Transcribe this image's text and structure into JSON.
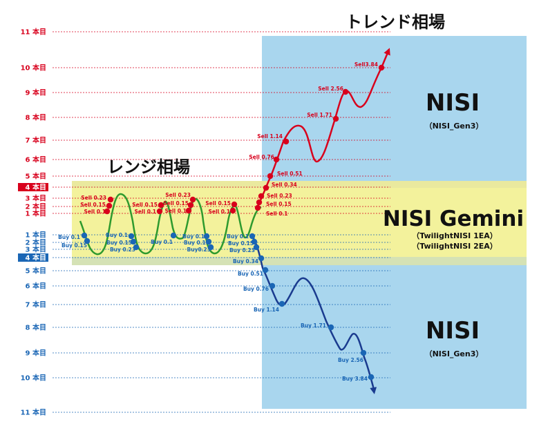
{
  "titles": {
    "trend": "トレンド相場",
    "range": "レンジ相場"
  },
  "panels": {
    "nisi_top": {
      "name": "NISI",
      "sub": "（NISI_Gen3）"
    },
    "gemini": {
      "name": "NISI Gemini",
      "sub1": "（TwilightNISI 1EA）",
      "sub2": "（TwilightNISI 2EA）"
    },
    "nisi_bottom": {
      "name": "NISI",
      "sub": "（NISI_Gen3）"
    }
  },
  "colors": {
    "sell": "#d8001c",
    "buy": "#1a66b5",
    "range_line": "#2e9a2e",
    "trend_bg": "#a9d6ee",
    "range_bg": "#f3f29c"
  },
  "upper_levels": [
    {
      "label": "11 本目",
      "highlight": false
    },
    {
      "label": "10 本目",
      "highlight": false
    },
    {
      "label": "9 本目",
      "highlight": false
    },
    {
      "label": "8 本目",
      "highlight": false
    },
    {
      "label": "7 本目",
      "highlight": false
    },
    {
      "label": "6 本目",
      "highlight": false
    },
    {
      "label": "5 本目",
      "highlight": false
    },
    {
      "label": "4 本目",
      "highlight": true
    },
    {
      "label": "3 本目",
      "highlight": false
    },
    {
      "label": "2 本目",
      "highlight": false
    },
    {
      "label": "1 本目",
      "highlight": false
    }
  ],
  "lower_levels": [
    {
      "label": "1 本目",
      "highlight": false
    },
    {
      "label": "2 本目",
      "highlight": false
    },
    {
      "label": "3 本目",
      "highlight": false
    },
    {
      "label": "4 本目",
      "highlight": true
    },
    {
      "label": "5 本目",
      "highlight": false
    },
    {
      "label": "6 本目",
      "highlight": false
    },
    {
      "label": "7 本目",
      "highlight": false
    },
    {
      "label": "8 本目",
      "highlight": false
    },
    {
      "label": "9 本目",
      "highlight": false
    },
    {
      "label": "10 本目",
      "highlight": false
    },
    {
      "label": "11 本目",
      "highlight": false
    }
  ],
  "range_sell_labels": [
    "Sell 0.23",
    "Sell 0.15",
    "Sell 0.1",
    "Sell 0.15",
    "Sell 0.1",
    "Sell 0.23",
    "Sell 0.15",
    "Sell 0.1",
    "Sell 0.15",
    "Sell 0.1"
  ],
  "range_buy_labels": [
    "Buy 0.1",
    "Buy 0.15",
    "Buy 0.1",
    "Buy 0.15",
    "Buy 0.23",
    "Buy 0.1",
    "Buy 0.1",
    "Buy 0.15",
    "Buy0.23",
    "Buy 0.1",
    "Buy 0.15",
    "Buy 0.23"
  ],
  "trend_sell_labels": [
    "Sell 0.1",
    "Sell 0.15",
    "Sell 0.23",
    "Sell 0.34",
    "Sell 0.51",
    "Sell 0.76",
    "Sell 1.14",
    "Sell 1.71",
    "Sell 2.56",
    "Sell3.84"
  ],
  "trend_buy_labels": [
    "Buy 0.34",
    "Buy 0.51",
    "Buy 0.76",
    "Buy 1.14",
    "Buy 1.71",
    "Buy 2.56",
    "Buy 3.84"
  ]
}
